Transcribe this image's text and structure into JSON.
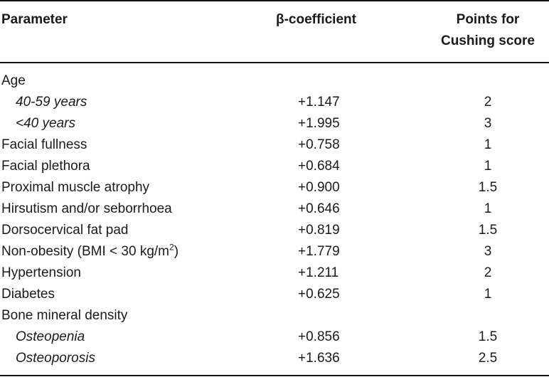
{
  "header": {
    "parameter": "Parameter",
    "beta": "β-coefficient",
    "points_line1": "Points for",
    "points_line2": "Cushing score"
  },
  "rows": [
    {
      "parameter": "Age",
      "beta": "",
      "points": "",
      "indent": false
    },
    {
      "parameter": "40-59 years",
      "beta": "+1.147",
      "points": "2",
      "indent": true
    },
    {
      "parameter": "<40 years",
      "beta": "+1.995",
      "points": "3",
      "indent": true
    },
    {
      "parameter": "Facial fullness",
      "beta": "+0.758",
      "points": "1",
      "indent": false
    },
    {
      "parameter": "Facial plethora",
      "beta": "+0.684",
      "points": "1",
      "indent": false
    },
    {
      "parameter": "Proximal muscle atrophy",
      "beta": "+0.900",
      "points": "1.5",
      "indent": false
    },
    {
      "parameter": "Hirsutism and/or seborrhoea",
      "beta": "+0.646",
      "points": "1",
      "indent": false
    },
    {
      "parameter": "Dorsocervical fat pad",
      "beta": "+0.819",
      "points": "1.5",
      "indent": false
    },
    {
      "parameter": "Non-obesity (BMI < 30 kg/m",
      "parameter_sup": "2",
      "parameter_end": ")",
      "beta": "+1.779",
      "points": "3",
      "indent": false
    },
    {
      "parameter": "Hypertension",
      "beta": "+1.211",
      "points": "2",
      "indent": false
    },
    {
      "parameter": "Diabetes",
      "beta": "+0.625",
      "points": "1",
      "indent": false
    },
    {
      "parameter": "Bone mineral density",
      "beta": "",
      "points": "",
      "indent": false
    },
    {
      "parameter": "Osteopenia",
      "beta": "+0.856",
      "points": "1.5",
      "indent": true
    },
    {
      "parameter": "Osteoporosis",
      "beta": "+1.636",
      "points": "2.5",
      "indent": true
    }
  ]
}
